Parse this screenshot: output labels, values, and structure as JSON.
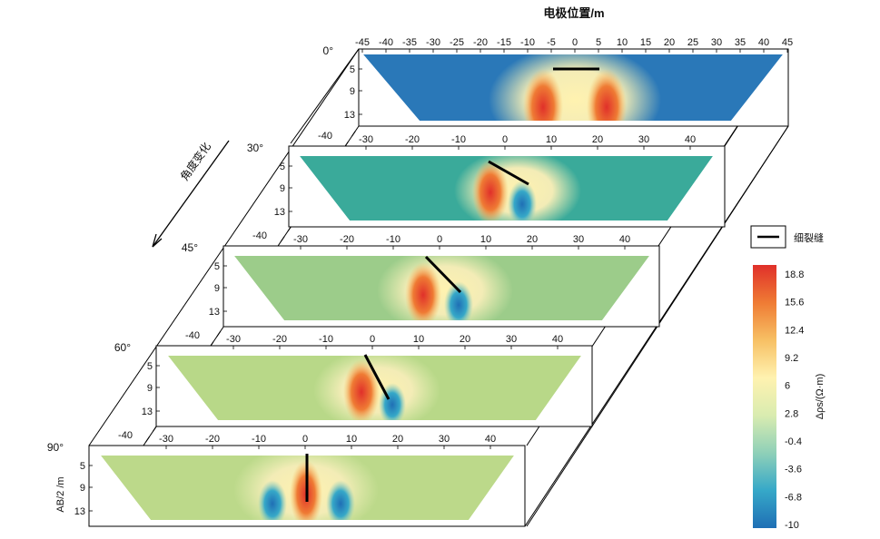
{
  "figure": {
    "top_axis_title": "电极位置/m",
    "angle_axis_label": "角度变化",
    "y_axis_label": "AB/2 /m",
    "legend": {
      "label": "细裂缝",
      "symbol": "black-line"
    },
    "colorbar": {
      "label": "Δρs/(Ω·m)",
      "ticks": [
        "18.8",
        "15.6",
        "12.4",
        "9.2",
        "6",
        "2.8",
        "-0.4",
        "-3.6",
        "-6.8",
        "-10"
      ],
      "colormap": [
        "#1f6fb5",
        "#36a8c8",
        "#8fd0b8",
        "#d9ecb0",
        "#fff2b0",
        "#f7c064",
        "#ef7b34",
        "#e0302a"
      ]
    }
  },
  "chart_data": {
    "type": "heatmap",
    "depth_ticks": [
      "5",
      "9",
      "13"
    ],
    "panels": [
      {
        "angle_label": "0°",
        "angle_deg": 0,
        "x_ticks": [
          "-45",
          "-40",
          "-35",
          "-30",
          "-25",
          "-20",
          "-15",
          "-10",
          "-5",
          "0",
          "5",
          "10",
          "15",
          "20",
          "25",
          "30",
          "35",
          "40",
          "45"
        ],
        "extra_x_tick": ""
      },
      {
        "angle_label": "30°",
        "angle_deg": 30,
        "x_ticks": [
          "-30",
          "-20",
          "-10",
          "0",
          "10",
          "20",
          "30",
          "40"
        ],
        "extra_x_tick": "-40"
      },
      {
        "angle_label": "45°",
        "angle_deg": 45,
        "x_ticks": [
          "-30",
          "-20",
          "-10",
          "0",
          "10",
          "20",
          "30",
          "40"
        ],
        "extra_x_tick": "-40"
      },
      {
        "angle_label": "60°",
        "angle_deg": 60,
        "x_ticks": [
          "-30",
          "-20",
          "-10",
          "0",
          "10",
          "20",
          "30",
          "40"
        ],
        "extra_x_tick": "-40"
      },
      {
        "angle_label": "90°",
        "angle_deg": 90,
        "x_ticks": [
          "-30",
          "-20",
          "-10",
          "0",
          "10",
          "20",
          "30",
          "40"
        ],
        "extra_x_tick": "-40"
      }
    ]
  }
}
